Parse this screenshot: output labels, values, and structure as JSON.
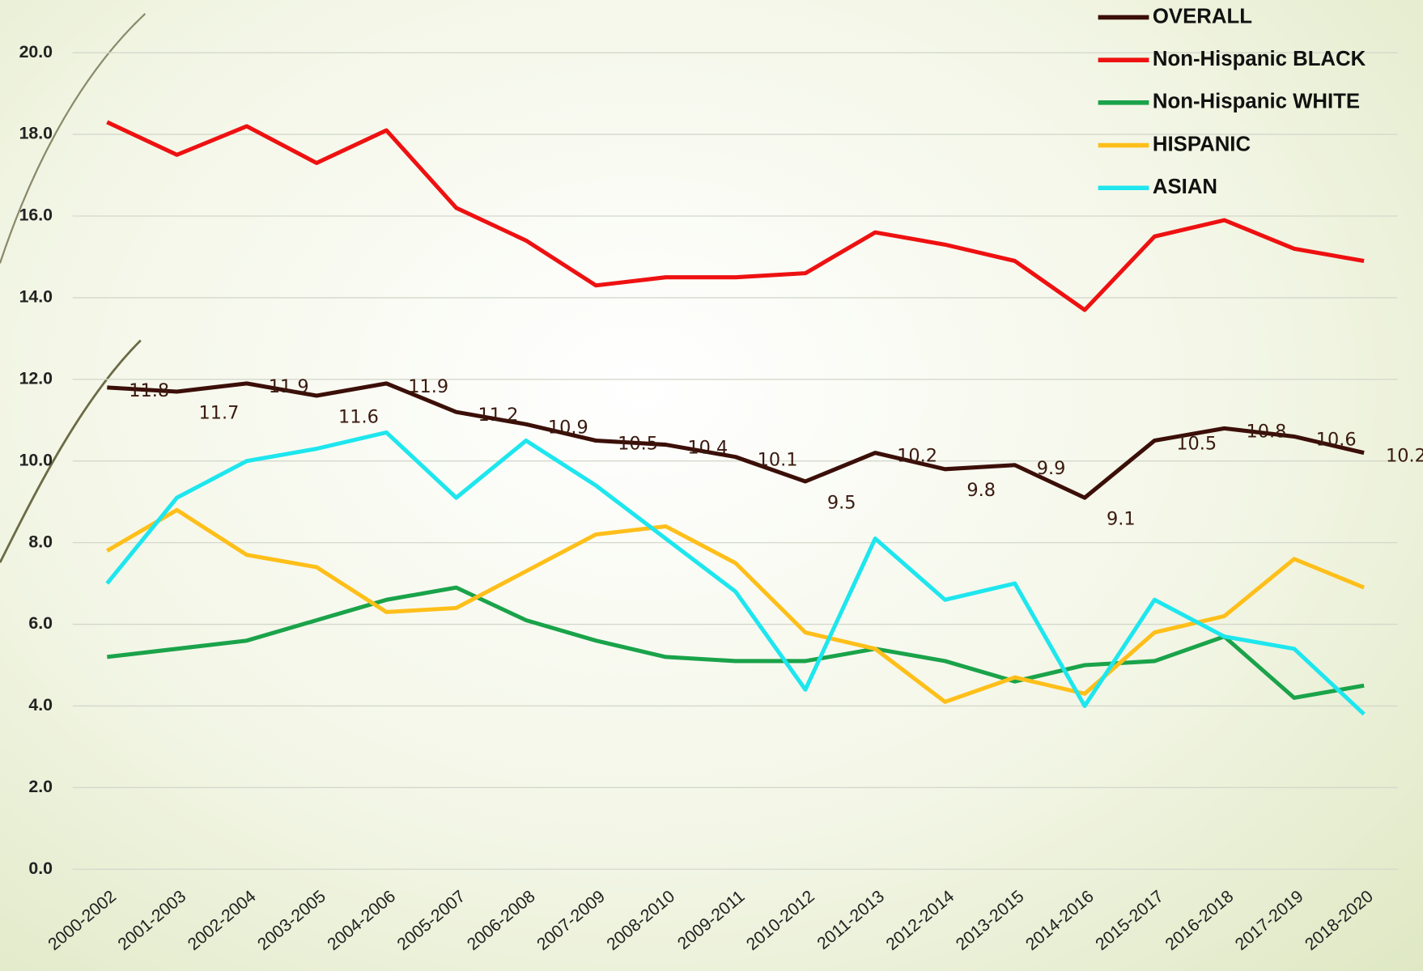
{
  "chart_data": {
    "type": "line",
    "categories": [
      "2000-2002",
      "2001-2003",
      "2002-2004",
      "2003-2005",
      "2004-2006",
      "2005-2007",
      "2006-2008",
      "2007-2009",
      "2008-2010",
      "2009-2011",
      "2010-2012",
      "2011-2013",
      "2012-2014",
      "2013-2015",
      "2014-2016",
      "2015-2017",
      "2016-2018",
      "2017-2019",
      "2018-2020"
    ],
    "series": [
      {
        "name": "OVERALL",
        "color": "#3b0f08",
        "values": [
          11.8,
          11.7,
          11.9,
          11.6,
          11.9,
          11.2,
          10.9,
          10.5,
          10.4,
          10.1,
          9.5,
          10.2,
          9.8,
          9.9,
          9.1,
          10.5,
          10.8,
          10.6,
          10.2
        ]
      },
      {
        "name": "Non-Hispanic BLACK",
        "color": "#ee1111",
        "values": [
          18.3,
          17.5,
          18.2,
          17.3,
          18.1,
          16.2,
          15.4,
          14.3,
          14.5,
          14.5,
          14.6,
          15.6,
          15.3,
          14.9,
          13.7,
          15.5,
          15.9,
          15.2,
          14.9
        ]
      },
      {
        "name": "Non-Hispanic WHITE",
        "color": "#1aa34a",
        "values": [
          5.2,
          5.4,
          5.6,
          6.1,
          6.6,
          6.9,
          6.1,
          5.6,
          5.2,
          5.1,
          5.1,
          5.4,
          5.1,
          4.6,
          5.0,
          5.1,
          5.7,
          4.2,
          4.5
        ]
      },
      {
        "name": "HISPANIC",
        "color": "#ffbf1a",
        "values": [
          7.8,
          8.8,
          7.7,
          7.4,
          6.3,
          6.4,
          7.3,
          8.2,
          8.4,
          7.5,
          5.8,
          5.4,
          4.1,
          4.7,
          4.3,
          5.8,
          6.2,
          7.6,
          6.9
        ]
      },
      {
        "name": "ASIAN",
        "color": "#1ee6ee",
        "values": [
          7.0,
          9.1,
          10.0,
          10.3,
          10.7,
          9.1,
          10.5,
          9.4,
          8.1,
          6.8,
          4.4,
          8.1,
          6.6,
          7.0,
          4.0,
          6.6,
          5.7,
          5.4,
          3.8
        ]
      }
    ],
    "ylim": [
      0,
      20
    ],
    "yticks": [
      {
        "value": 0,
        "label": "0.0"
      },
      {
        "value": 2,
        "label": "2.0"
      },
      {
        "value": 4,
        "label": "4.0"
      },
      {
        "value": 6,
        "label": "6.0"
      },
      {
        "value": 8,
        "label": "8.0"
      },
      {
        "value": 10,
        "label": "10.0"
      },
      {
        "value": 12,
        "label": "12.0"
      },
      {
        "value": 14,
        "label": "14.0"
      },
      {
        "value": 16,
        "label": "16.0"
      },
      {
        "value": 18,
        "label": "18.0"
      },
      {
        "value": 20,
        "label": "20.0"
      }
    ],
    "grid": true,
    "legend": "top-right"
  }
}
